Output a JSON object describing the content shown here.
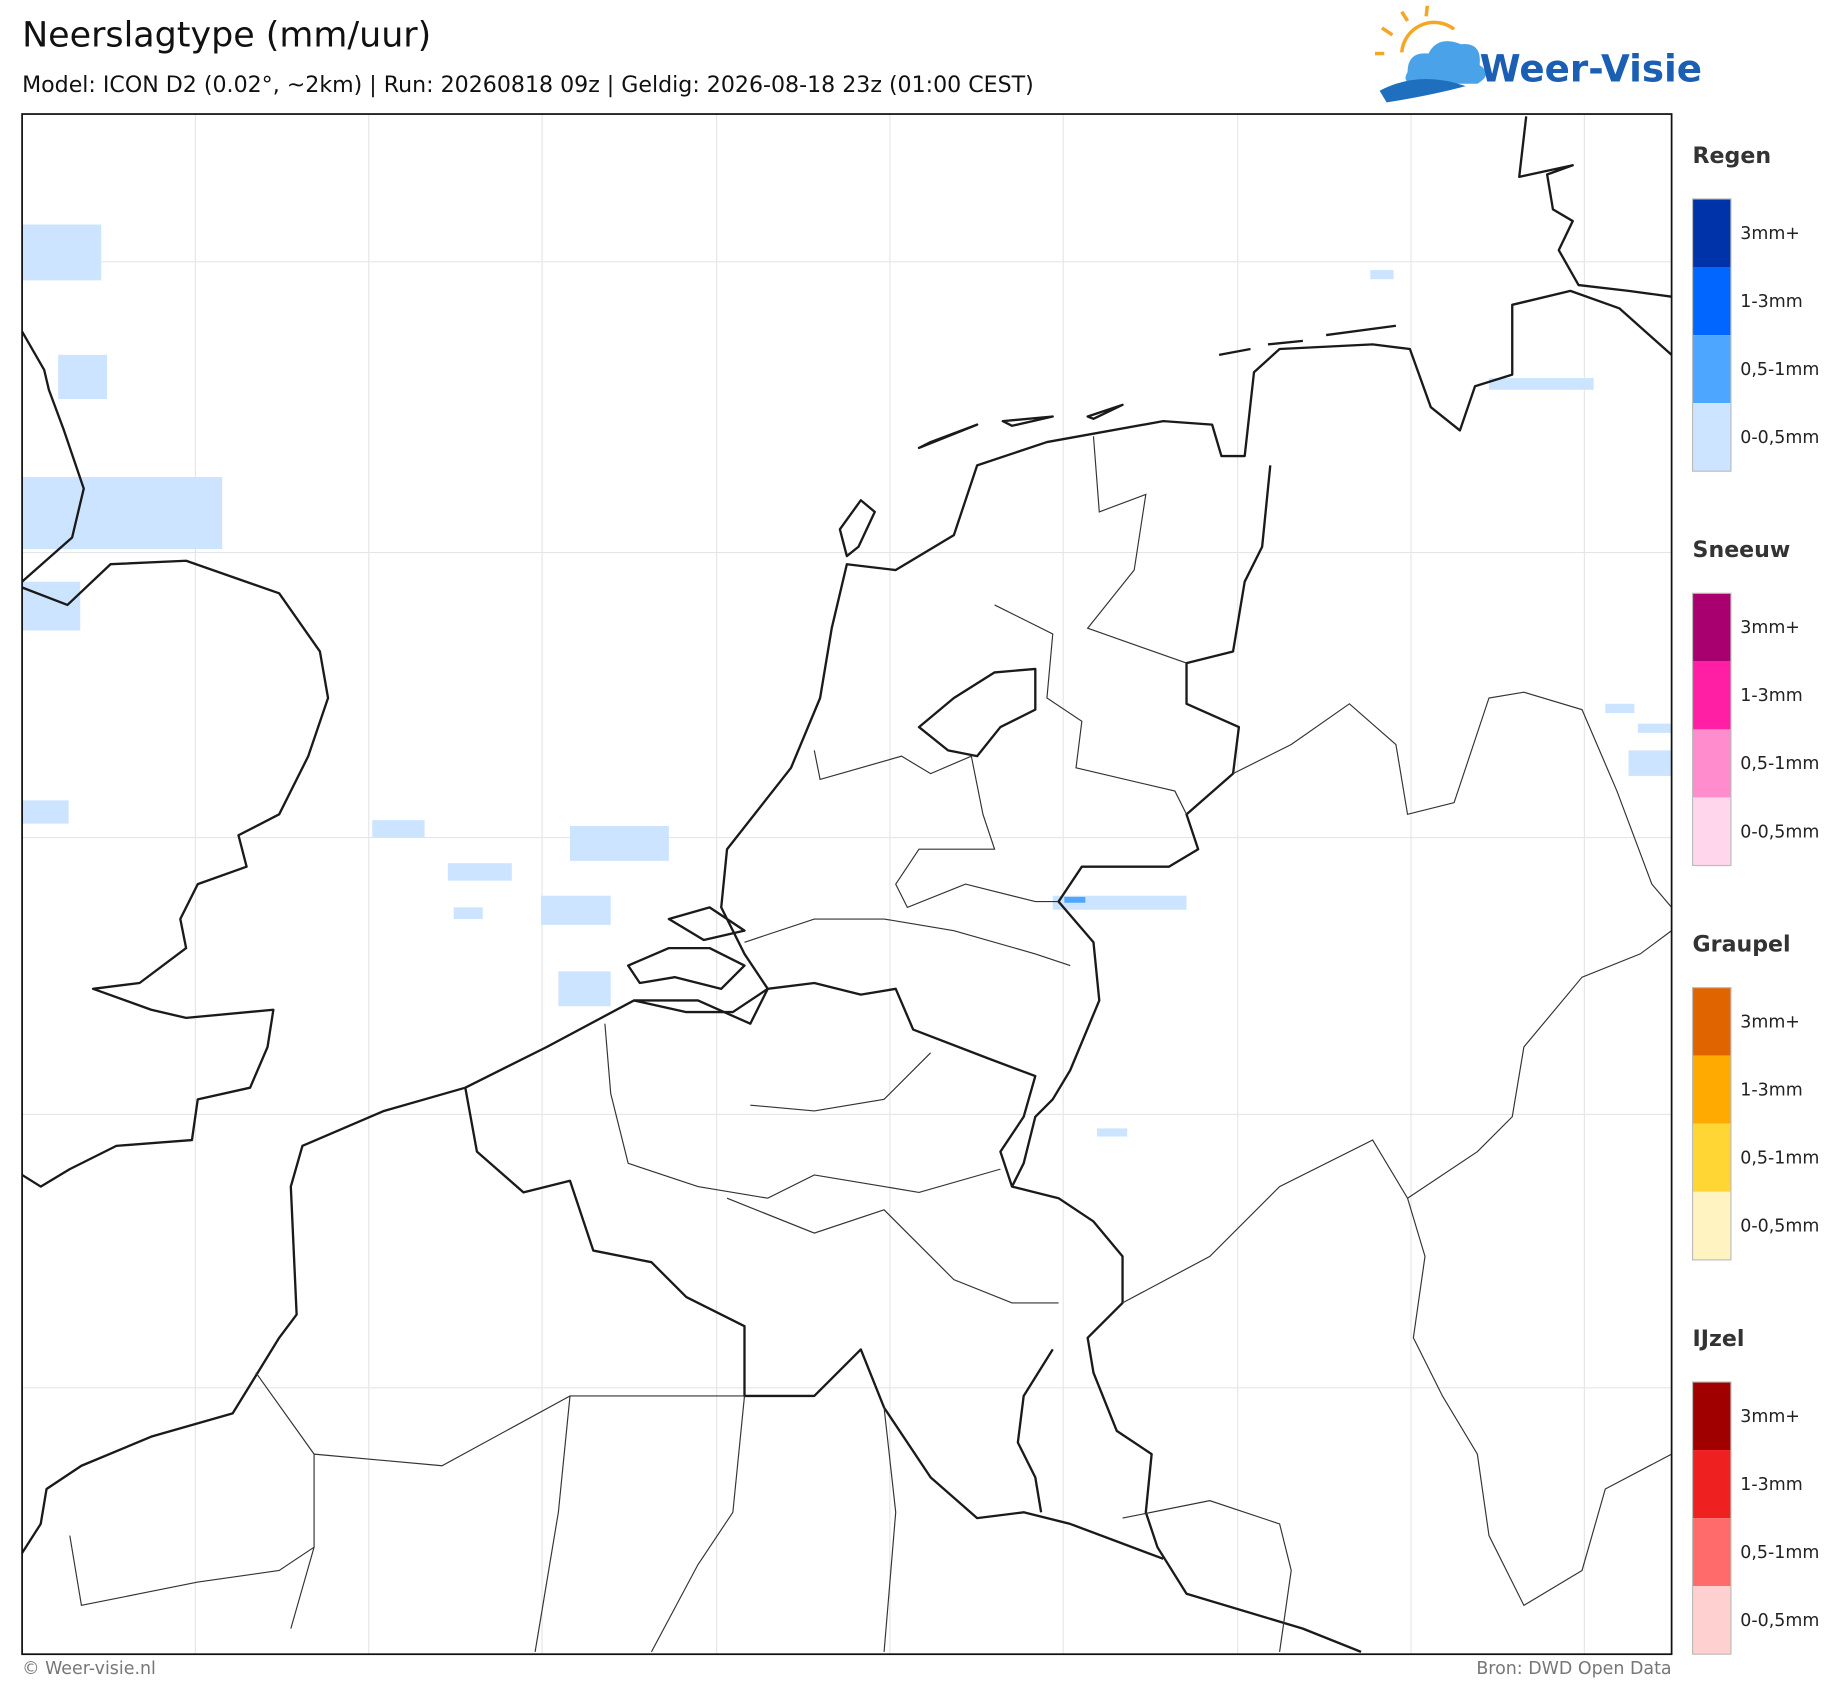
{
  "header": {
    "title": "Neerslagtype (mm/uur)",
    "subtitle": "Model: ICON D2 (0.02°, ~2km)  |  Run: 20260818 09z  |  Geldig: 2026-08-18 23z (01:00 CEST)",
    "logo": "Weer-Visie"
  },
  "legend": {
    "groups": [
      {
        "title": "Regen",
        "items": [
          {
            "label": "3mm+",
            "color": "#0033aa"
          },
          {
            "label": "1-3mm",
            "color": "#0066ff"
          },
          {
            "label": "0,5-1mm",
            "color": "#4da6ff"
          },
          {
            "label": "0-0,5mm",
            "color": "#cce4ff"
          }
        ]
      },
      {
        "title": "Sneeuw",
        "items": [
          {
            "label": "3mm+",
            "color": "#a8006e"
          },
          {
            "label": "1-3mm",
            "color": "#ff1fa5"
          },
          {
            "label": "0,5-1mm",
            "color": "#ff8ccc"
          },
          {
            "label": "0-0,5mm",
            "color": "#ffd6ec"
          }
        ]
      },
      {
        "title": "Graupel",
        "items": [
          {
            "label": "3mm+",
            "color": "#e06400"
          },
          {
            "label": "1-3mm",
            "color": "#ffaa00"
          },
          {
            "label": "0,5-1mm",
            "color": "#ffd633"
          },
          {
            "label": "0-0,5mm",
            "color": "#fff3c2"
          }
        ]
      },
      {
        "title": "IJzel",
        "items": [
          {
            "label": "3mm+",
            "color": "#a00000"
          },
          {
            "label": "1-3mm",
            "color": "#ee2020"
          },
          {
            "label": "0,5-1mm",
            "color": "#ff6b6b"
          },
          {
            "label": "0-0,5mm",
            "color": "#ffd0d0"
          }
        ]
      }
    ]
  },
  "footer": {
    "copyright": "© Weer-visie.nl",
    "source": "Bron: DWD Open Data"
  }
}
